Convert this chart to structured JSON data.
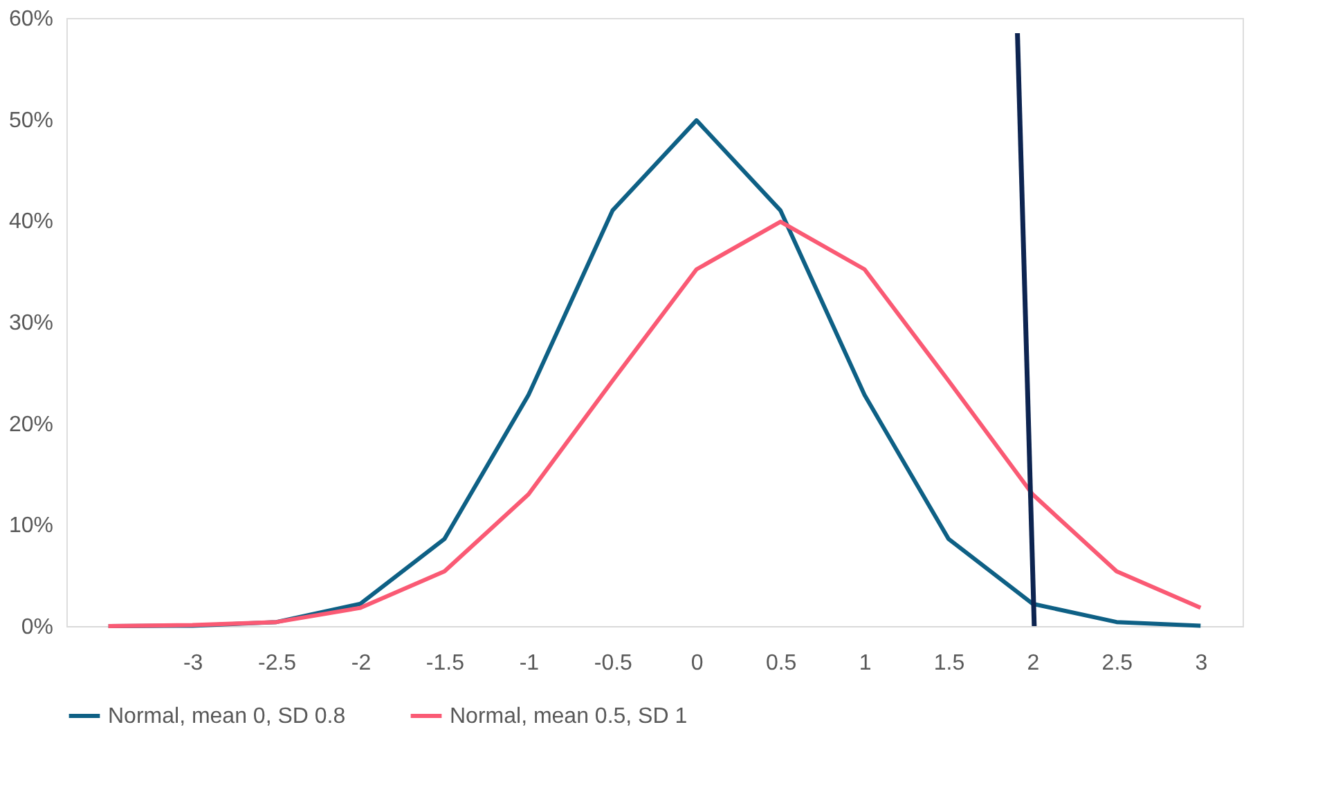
{
  "chart_data": {
    "type": "line",
    "x": [
      -3.5,
      -3,
      -2.5,
      -2,
      -1.5,
      -1,
      -0.5,
      0,
      0.5,
      1,
      1.5,
      2,
      2.5,
      3
    ],
    "series": [
      {
        "name": "Normal, mean 0, SD 0.8",
        "color": "#0e6085",
        "values": [
          0,
          0.04,
          0.4,
          2.2,
          8.6,
          22.8,
          41.0,
          49.9,
          41.0,
          22.8,
          8.6,
          2.2,
          0.4,
          0.04
        ]
      },
      {
        "name": "Normal, mean 0.5, SD 1",
        "color": "#fa5a74",
        "values": [
          0,
          0.1,
          0.4,
          1.8,
          5.4,
          13.0,
          24.2,
          35.2,
          39.9,
          35.2,
          24.2,
          13.0,
          5.4,
          1.8
        ]
      },
      {
        "color": "#0d2450",
        "x": [
          1.91,
          2.01
        ],
        "values": [
          58.5,
          0
        ]
      }
    ],
    "xlim": [
      -3.75,
      3.25
    ],
    "xticks": [
      -3,
      -2.5,
      -2,
      -1.5,
      -1,
      -0.5,
      0,
      0.5,
      1,
      1.5,
      2,
      2.5,
      3
    ],
    "ylim": [
      0,
      60
    ],
    "yticks": [
      {
        "value": 0,
        "label": "0%"
      },
      {
        "value": 10,
        "label": "10%"
      },
      {
        "value": 20,
        "label": "20%"
      },
      {
        "value": 30,
        "label": "30%"
      },
      {
        "value": 40,
        "label": "40%"
      },
      {
        "value": 50,
        "label": "50%"
      },
      {
        "value": 60,
        "label": "60%"
      }
    ],
    "grid": false,
    "legend": "bottom",
    "marker": "none",
    "line_style": "solid"
  }
}
